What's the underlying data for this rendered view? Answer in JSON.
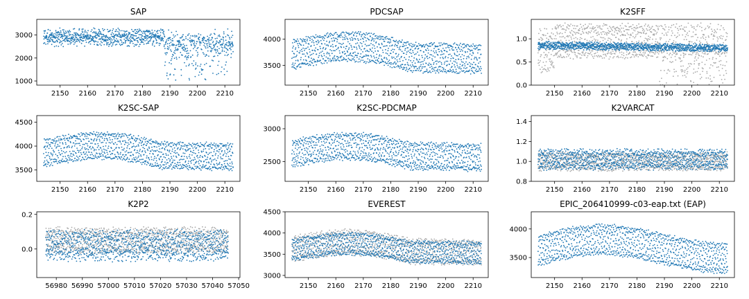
{
  "figure": {
    "colors": {
      "primary": "#1f77b4",
      "secondary": "#a9a9a9",
      "axis": "#000000"
    },
    "chart_data": [
      {
        "type": "scatter",
        "title": "SAP",
        "x_range": [
          2144,
          2213
        ],
        "xlim": [
          2141.5,
          2215.5
        ],
        "ylim": [
          820,
          3680
        ],
        "xticks": [
          2150,
          2160,
          2170,
          2180,
          2190,
          2200,
          2210
        ],
        "yticks": [
          1000,
          2000,
          3000
        ],
        "series": [
          {
            "color": "primary",
            "center": 2900,
            "amplitude": 380,
            "trend": "sap_drop",
            "noise": 220
          }
        ]
      },
      {
        "type": "scatter",
        "title": "PDCSAP",
        "x_range": [
          2144,
          2213
        ],
        "xlim": [
          2141.5,
          2215.5
        ],
        "ylim": [
          3120,
          4380
        ],
        "xticks": [
          2150,
          2160,
          2170,
          2180,
          2190,
          2200,
          2210
        ],
        "yticks": [
          3500,
          4000
        ],
        "series": [
          {
            "color": "primary",
            "center": 3700,
            "amplitude": 520,
            "trend": "hump",
            "noise": 40
          }
        ]
      },
      {
        "type": "scatter",
        "title": "K2SFF",
        "x_range": [
          2144,
          2213
        ],
        "xlim": [
          2141.5,
          2215.5
        ],
        "ylim": [
          0.0,
          1.42
        ],
        "xticks": [
          2150,
          2160,
          2170,
          2180,
          2190,
          2200,
          2210
        ],
        "yticks": [
          0.0,
          0.5,
          1.0
        ],
        "series": [
          {
            "color": "secondary",
            "center": 1.0,
            "amplitude": 0.32,
            "trend": "sff_gray",
            "noise": 0.12
          },
          {
            "color": "primary",
            "center": 0.86,
            "amplitude": 0.1,
            "trend": "slight_down",
            "noise": 0.04
          }
        ]
      },
      {
        "type": "scatter",
        "title": "K2SC-SAP",
        "x_range": [
          2144,
          2213
        ],
        "xlim": [
          2141.5,
          2215.5
        ],
        "ylim": [
          3260,
          4640
        ],
        "xticks": [
          2150,
          2160,
          2170,
          2180,
          2190,
          2200,
          2210
        ],
        "yticks": [
          3500,
          4000,
          4500
        ],
        "series": [
          {
            "color": "primary",
            "center": 3850,
            "amplitude": 520,
            "trend": "hump",
            "noise": 40
          }
        ]
      },
      {
        "type": "scatter",
        "title": "K2SC-PDCMAP",
        "x_range": [
          2144,
          2213
        ],
        "xlim": [
          2141.5,
          2215.5
        ],
        "ylim": [
          2200,
          3200
        ],
        "xticks": [
          2150,
          2160,
          2170,
          2180,
          2190,
          2200,
          2210
        ],
        "yticks": [
          2500,
          3000
        ],
        "series": [
          {
            "color": "primary",
            "center": 2620,
            "amplitude": 380,
            "trend": "hump",
            "noise": 30
          }
        ]
      },
      {
        "type": "scatter",
        "title": "K2VARCAT",
        "x_range": [
          2144,
          2213
        ],
        "xlim": [
          2141.5,
          2215.5
        ],
        "ylim": [
          0.8,
          1.46
        ],
        "xticks": [
          2150,
          2160,
          2170,
          2180,
          2190,
          2200,
          2210
        ],
        "yticks": [
          0.8,
          1.0,
          1.2,
          1.4
        ],
        "series": [
          {
            "color": "secondary",
            "center": 1.0,
            "amplitude": 0.14,
            "trend": "flat",
            "noise": 0.03
          },
          {
            "color": "primary",
            "center": 1.02,
            "amplitude": 0.16,
            "trend": "flat",
            "noise": 0.03
          }
        ]
      },
      {
        "type": "scatter",
        "title": "K2P2",
        "x_range": [
          56976,
          57046
        ],
        "xlim": [
          56972.5,
          57050.5
        ],
        "ylim": [
          -0.165,
          0.215
        ],
        "xticks": [
          56980,
          56990,
          57000,
          57010,
          57020,
          57030,
          57040,
          57050
        ],
        "yticks": [
          0.0,
          0.2
        ],
        "series": [
          {
            "color": "secondary",
            "center": 0.05,
            "amplitude": 0.12,
            "trend": "flat",
            "noise": 0.02
          },
          {
            "color": "primary",
            "center": 0.02,
            "amplitude": 0.13,
            "trend": "flat",
            "noise": 0.03
          }
        ]
      },
      {
        "type": "scatter",
        "title": "EVEREST",
        "x_range": [
          2144,
          2213
        ],
        "xlim": [
          2141.5,
          2215.5
        ],
        "ylim": [
          2950,
          4500
        ],
        "xticks": [
          2150,
          2160,
          2170,
          2180,
          2190,
          2200,
          2210
        ],
        "yticks": [
          3000,
          3500,
          4000,
          4500
        ],
        "series": [
          {
            "color": "secondary",
            "center": 3620,
            "amplitude": 520,
            "trend": "hump",
            "noise": 60
          },
          {
            "color": "primary",
            "center": 3600,
            "amplitude": 480,
            "trend": "hump",
            "noise": 40
          }
        ]
      },
      {
        "type": "scatter",
        "title": "EPIC_206410999-c03-eap.txt (EAP)",
        "x_range": [
          2144,
          2213
        ],
        "xlim": [
          2141.5,
          2215.5
        ],
        "ylim": [
          3150,
          4300
        ],
        "xticks": [
          2150,
          2160,
          2170,
          2180,
          2190,
          2200,
          2210
        ],
        "yticks": [
          3500,
          4000
        ],
        "series": [
          {
            "color": "primary",
            "center": 3620,
            "amplitude": 500,
            "trend": "hump_late",
            "noise": 30
          }
        ]
      }
    ]
  }
}
